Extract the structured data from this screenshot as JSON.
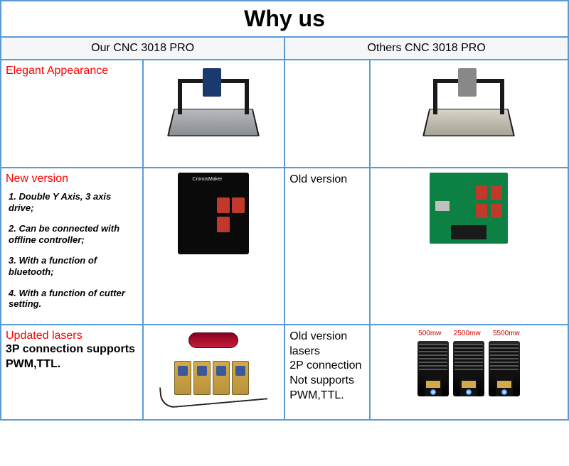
{
  "title": "Why us",
  "headers": {
    "left": "Our CNC 3018 PRO",
    "right": "Others CNC 3018 PRO"
  },
  "row1": {
    "label": "Elegant Appearance"
  },
  "row2": {
    "label": "New version",
    "features": [
      "1. Double Y Axis, 3 axis drive;",
      "2. Can be connected with offline controller;",
      "3. With a function of bluetooth;",
      "4. With a function of cutter setting."
    ],
    "right_label": "Old version",
    "board_label": "CronosMaker"
  },
  "row3": {
    "label": "Updated lasers",
    "bold_text": "3P connection supports PWM,TTL.",
    "right_text": "Old version lasers\n2P connection\nNot supports PWM,TTL.",
    "power_labels": [
      "500mw",
      "2500mw",
      "5500mw"
    ]
  },
  "colors": {
    "border": "#5b9bd5",
    "red_text": "#ff0000",
    "header_bg": "#f4f6f8"
  }
}
